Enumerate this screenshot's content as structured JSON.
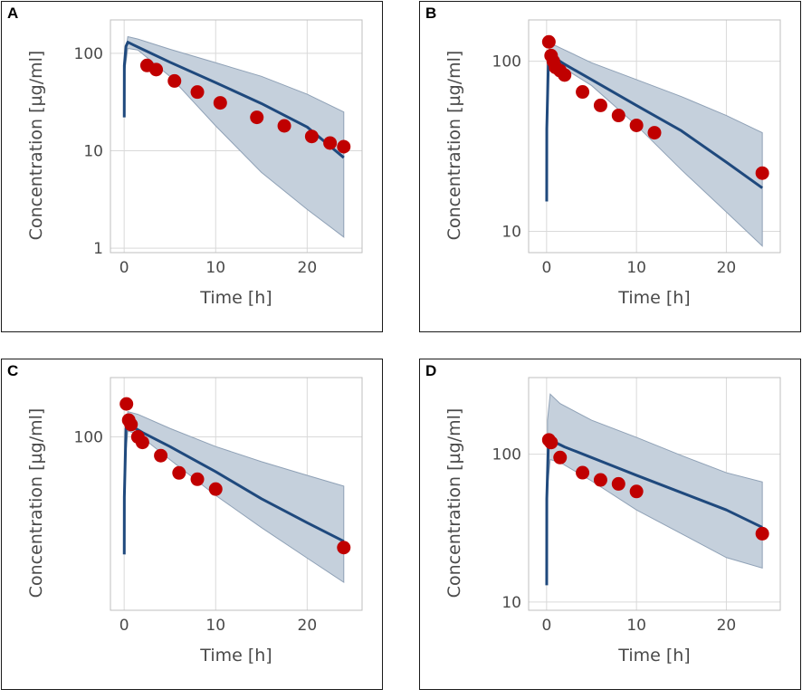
{
  "chart_data": [
    {
      "panel": "A",
      "type": "line",
      "xlabel": "Time [h]",
      "ylabel": "Concentration [µg/ml]",
      "yscale": "log",
      "xlim": [
        -1.5,
        26
      ],
      "ylim": [
        0.9,
        220
      ],
      "xticks": [
        0,
        10,
        20
      ],
      "yticks": [
        1,
        10,
        100
      ],
      "ytick_labels": [
        "1",
        "10",
        "100"
      ],
      "band": {
        "x": [
          0.1,
          0.4,
          1.5,
          5,
          10,
          15,
          20,
          24
        ],
        "upper": [
          95,
          148,
          140,
          110,
          80,
          58,
          38,
          25
        ],
        "lower": [
          70,
          112,
          108,
          58,
          18,
          6,
          2.5,
          1.3
        ]
      },
      "prediction": {
        "x": [
          0.01,
          0.02,
          0.2,
          0.4,
          1.0,
          2,
          5,
          10,
          15,
          20,
          24
        ],
        "y": [
          22,
          75,
          118,
          130,
          122,
          110,
          81,
          50,
          30.5,
          17.5,
          8.5
        ]
      },
      "observed": {
        "x": [
          2.5,
          3.5,
          5.5,
          8,
          10.5,
          14.5,
          17.5,
          20.5,
          22.5,
          24
        ],
        "y": [
          75,
          68,
          52,
          40,
          31,
          22,
          18,
          14,
          12,
          11
        ]
      }
    },
    {
      "panel": "B",
      "type": "line",
      "xlabel": "Time [h]",
      "ylabel": "Concentration [µg/ml]",
      "yscale": "log",
      "xlim": [
        -2,
        26
      ],
      "ylim": [
        7.5,
        175
      ],
      "xticks": [
        0,
        10,
        20
      ],
      "yticks": [
        10,
        100
      ],
      "ytick_labels": [
        "10",
        "100"
      ],
      "band": {
        "x": [
          0.1,
          0.4,
          1.5,
          5,
          10,
          15,
          20,
          24
        ],
        "upper": [
          80,
          128,
          120,
          98,
          78,
          62,
          48,
          38
        ],
        "lower": [
          70,
          100,
          94,
          72,
          42,
          23,
          13,
          8.2
        ]
      },
      "prediction": {
        "x": [
          0.01,
          0.02,
          0.2,
          0.4,
          1.0,
          2,
          5,
          10,
          15,
          20,
          24
        ],
        "y": [
          15,
          40,
          100,
          110,
          104,
          96,
          78,
          55,
          39,
          25.5,
          18
        ]
      },
      "observed": {
        "x": [
          0.25,
          0.5,
          0.75,
          1.0,
          1.5,
          2.0,
          4.0,
          6.0,
          8.0,
          10.0,
          12.0,
          24.0
        ],
        "y": [
          130,
          108,
          100,
          92,
          88,
          83,
          66,
          55,
          48,
          42,
          38,
          22
        ]
      }
    },
    {
      "panel": "C",
      "type": "line",
      "xlabel": "Time [h]",
      "ylabel": "Concentration [µg/ml]",
      "yscale": "log",
      "xlim": [
        -1.5,
        26
      ],
      "ylim": [
        10,
        220
      ],
      "xticks": [
        0,
        10,
        20
      ],
      "yticks": [
        100
      ],
      "ytick_labels": [
        "100"
      ],
      "band": {
        "x": [
          0.1,
          0.4,
          1.5,
          5,
          10,
          15,
          20,
          24
        ],
        "upper": [
          95,
          140,
          135,
          112,
          88,
          72,
          60,
          52
        ],
        "lower": [
          72,
          108,
          104,
          74,
          46,
          30,
          20,
          14.5
        ]
      },
      "prediction": {
        "x": [
          0.01,
          0.02,
          0.2,
          0.4,
          1.0,
          2,
          5,
          10,
          15,
          20,
          24
        ],
        "y": [
          21,
          45,
          112,
          120,
          114,
          106,
          88,
          63,
          44,
          32,
          25
        ]
      },
      "observed": {
        "x": [
          0.25,
          0.5,
          0.75,
          1.5,
          2.0,
          4.0,
          6.0,
          8.0,
          10.0,
          24.0
        ],
        "y": [
          155,
          125,
          118,
          100,
          93,
          78,
          62,
          57,
          50,
          23
        ]
      }
    },
    {
      "panel": "D",
      "type": "line",
      "xlabel": "Time [h]",
      "ylabel": "Concentration [µg/ml]",
      "yscale": "log",
      "xlim": [
        -2,
        26
      ],
      "ylim": [
        8.8,
        330
      ],
      "xticks": [
        0,
        10,
        20
      ],
      "yticks": [
        10,
        100
      ],
      "ytick_labels": [
        "10",
        "100"
      ],
      "band": {
        "x": [
          0.1,
          0.4,
          1.5,
          5,
          10,
          15,
          20,
          24
        ],
        "upper": [
          170,
          255,
          220,
          170,
          130,
          98,
          75,
          65
        ],
        "lower": [
          60,
          92,
          88,
          66,
          42,
          29,
          20,
          17
        ]
      },
      "prediction": {
        "x": [
          0.01,
          0.02,
          0.2,
          0.4,
          1.0,
          2,
          5,
          10,
          15,
          20,
          24
        ],
        "y": [
          13,
          50,
          118,
          125,
          120,
          112,
          95,
          72,
          55,
          42,
          32
        ]
      },
      "observed": {
        "x": [
          0.25,
          0.5,
          1.5,
          4.0,
          6.0,
          8.0,
          10.0,
          24.0
        ],
        "y": [
          125,
          120,
          95,
          75,
          67,
          63,
          56,
          29
        ]
      }
    }
  ],
  "colors": {
    "band_fill": "#c5d0dc",
    "band_edge": "#8fa1b6",
    "prediction_line": "#1f497d",
    "observed_point": "#c00000",
    "grid": "#d9d9d9",
    "axis_frame": "#bfbfbf",
    "text": "#4a4a4a"
  }
}
